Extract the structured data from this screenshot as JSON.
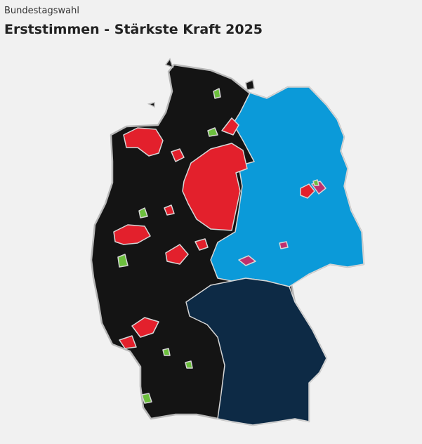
{
  "header": {
    "subtitle": "Bundestagswahl",
    "title": "Erststimmen - Stärkste Kraft 2025"
  }
}
